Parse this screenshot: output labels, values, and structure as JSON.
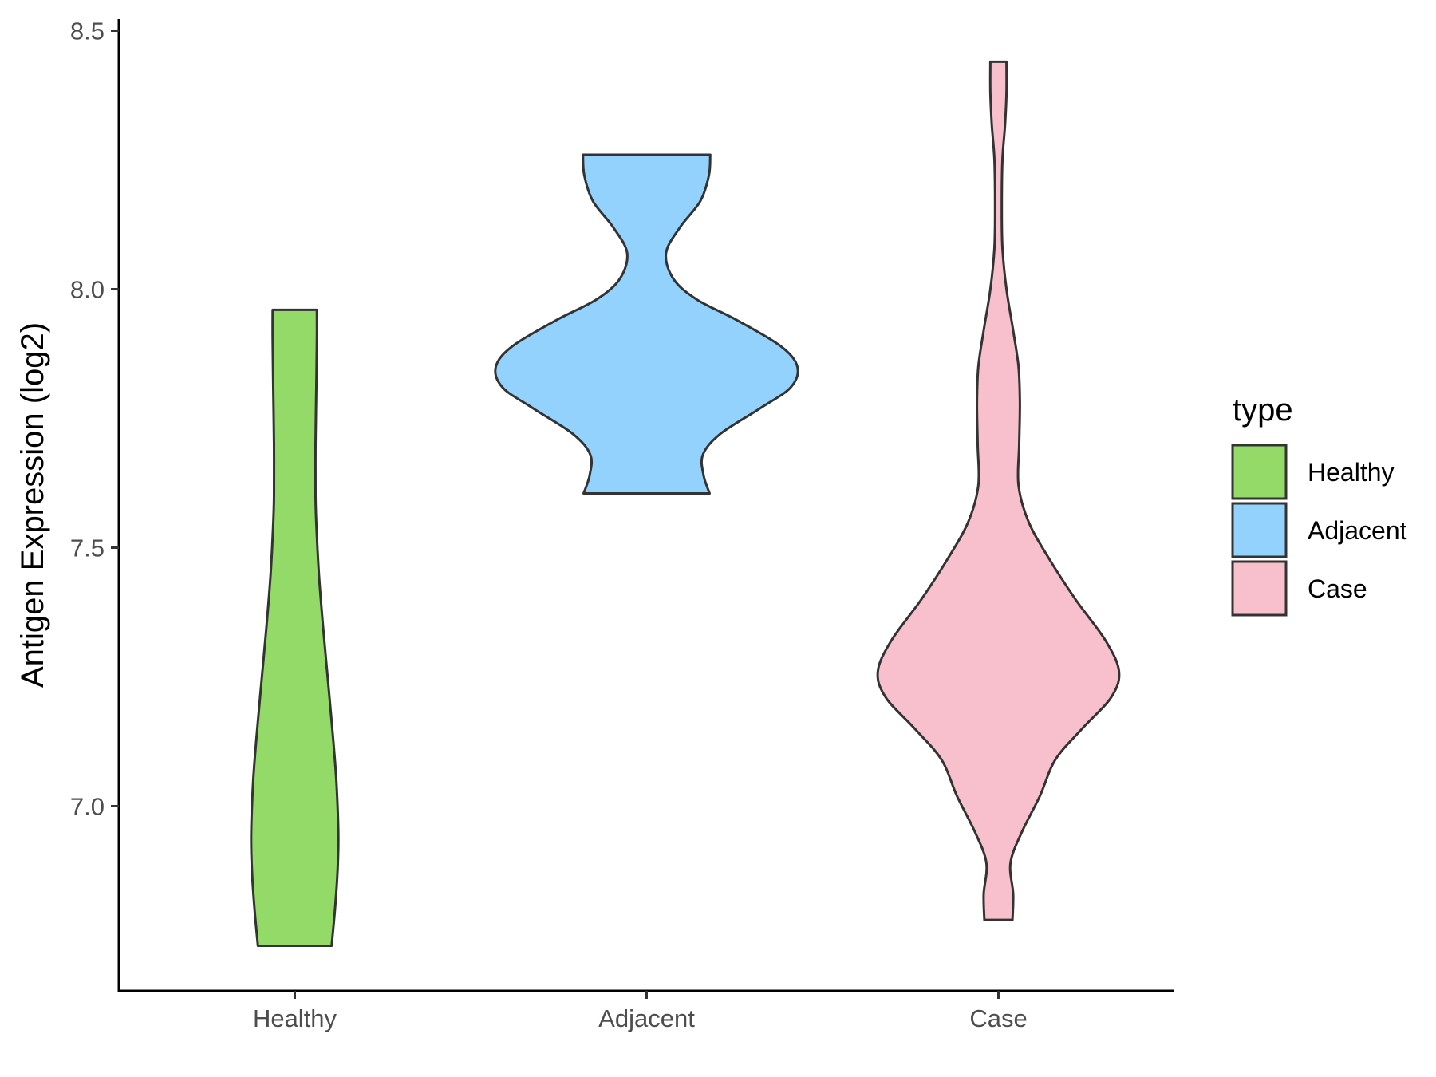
{
  "chart_data": {
    "type": "violin",
    "ylabel": "Antigen Expression (log2)",
    "xlabel": "",
    "ylim": [
      6.645,
      8.52
    ],
    "yticks": [
      "7.0",
      "7.5",
      "8.0",
      "8.5"
    ],
    "ytick_values": [
      7.0,
      7.5,
      8.0,
      8.5
    ],
    "categories": [
      "Healthy",
      "Adjacent",
      "Case"
    ],
    "legend_title": "type",
    "legend_position": "right",
    "grid": false,
    "series": [
      {
        "name": "Healthy",
        "color": "#93DA69",
        "min": 6.73,
        "max": 7.96,
        "density": [
          [
            6.73,
            0.055
          ],
          [
            6.8,
            0.06
          ],
          [
            6.88,
            0.064
          ],
          [
            6.95,
            0.065
          ],
          [
            7.05,
            0.062
          ],
          [
            7.15,
            0.056
          ],
          [
            7.25,
            0.049
          ],
          [
            7.35,
            0.042
          ],
          [
            7.45,
            0.036
          ],
          [
            7.55,
            0.032
          ],
          [
            7.6,
            0.031
          ],
          [
            7.7,
            0.031
          ],
          [
            7.8,
            0.032
          ],
          [
            7.9,
            0.033
          ],
          [
            7.96,
            0.033
          ]
        ]
      },
      {
        "name": "Adjacent",
        "color": "#92D2FD",
        "min": 7.605,
        "max": 8.26,
        "density": [
          [
            7.605,
            0.094
          ],
          [
            7.64,
            0.085
          ],
          [
            7.68,
            0.084
          ],
          [
            7.72,
            0.11
          ],
          [
            7.77,
            0.17
          ],
          [
            7.81,
            0.215
          ],
          [
            7.85,
            0.225
          ],
          [
            7.89,
            0.2
          ],
          [
            7.94,
            0.135
          ],
          [
            7.98,
            0.075
          ],
          [
            8.02,
            0.04
          ],
          [
            8.07,
            0.029
          ],
          [
            8.12,
            0.05
          ],
          [
            8.17,
            0.08
          ],
          [
            8.22,
            0.093
          ],
          [
            8.26,
            0.095
          ]
        ]
      },
      {
        "name": "Case",
        "color": "#F7C0CC",
        "min": 6.78,
        "max": 8.44,
        "density": [
          [
            6.78,
            0.021
          ],
          [
            6.83,
            0.022
          ],
          [
            6.89,
            0.018
          ],
          [
            6.95,
            0.035
          ],
          [
            7.02,
            0.062
          ],
          [
            7.09,
            0.085
          ],
          [
            7.15,
            0.125
          ],
          [
            7.21,
            0.168
          ],
          [
            7.26,
            0.18
          ],
          [
            7.32,
            0.16
          ],
          [
            7.4,
            0.115
          ],
          [
            7.48,
            0.075
          ],
          [
            7.55,
            0.045
          ],
          [
            7.62,
            0.03
          ],
          [
            7.7,
            0.031
          ],
          [
            7.78,
            0.032
          ],
          [
            7.85,
            0.03
          ],
          [
            7.92,
            0.022
          ],
          [
            8.0,
            0.012
          ],
          [
            8.08,
            0.006
          ],
          [
            8.16,
            0.005
          ],
          [
            8.25,
            0.006
          ],
          [
            8.32,
            0.01
          ],
          [
            8.38,
            0.012
          ],
          [
            8.44,
            0.012
          ]
        ]
      }
    ]
  }
}
